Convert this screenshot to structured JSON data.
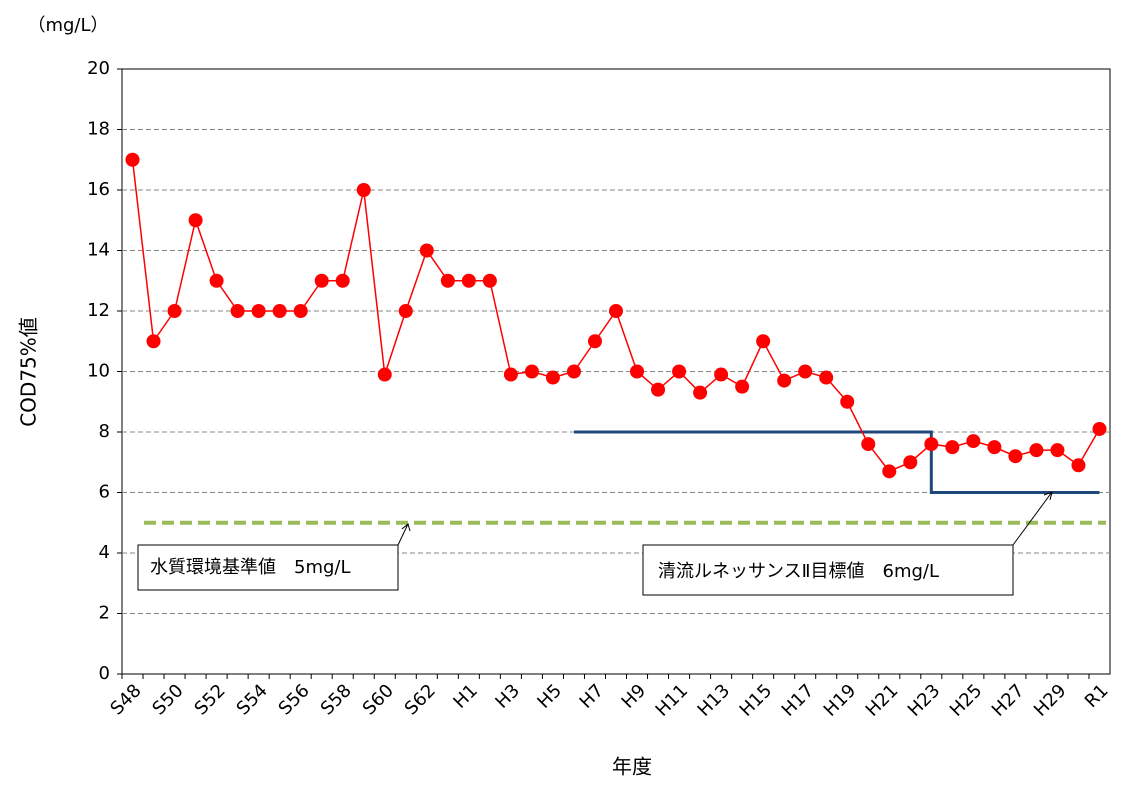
{
  "chart_data": {
    "type": "line",
    "unit_label": "（mg/L）",
    "y_label": "COD75%値",
    "x_label": "年度",
    "categories": [
      "S48",
      null,
      "S50",
      null,
      "S52",
      null,
      "S54",
      null,
      "S56",
      null,
      "S58",
      null,
      "S60",
      null,
      "S62",
      null,
      "H1",
      null,
      "H3",
      null,
      "H5",
      null,
      "H7",
      null,
      "H9",
      null,
      "H11",
      null,
      "H13",
      null,
      "H15",
      null,
      "H17",
      null,
      "H19",
      null,
      "H21",
      null,
      "H23",
      null,
      "H25",
      null,
      "H27",
      null,
      "H29",
      null,
      "R1"
    ],
    "series": [
      {
        "color": "#ff0000",
        "values": [
          17,
          11,
          12,
          15,
          13,
          12,
          12,
          12,
          12,
          13,
          13,
          16,
          9.9,
          12,
          14,
          13,
          13,
          13,
          9.9,
          10,
          9.8,
          10,
          11,
          12,
          10,
          9.4,
          10,
          9.3,
          9.9,
          9.5,
          11,
          9.7,
          10,
          9.8,
          9.0,
          7.6,
          6.7,
          7.0,
          7.6,
          7.5,
          7.7,
          7.5,
          7.2,
          7.4,
          7.4,
          6.9,
          8.1
        ]
      }
    ],
    "target": {
      "label": "清流ルネッサンスⅡ目標値　6mg/L",
      "color": "#1f497d",
      "values": [
        null,
        null,
        null,
        null,
        null,
        null,
        null,
        null,
        null,
        null,
        null,
        null,
        null,
        null,
        null,
        null,
        null,
        null,
        null,
        null,
        null,
        8,
        8,
        8,
        8,
        8,
        8,
        8,
        8,
        8,
        8,
        8,
        8,
        8,
        8,
        8,
        8,
        8,
        6,
        6,
        6,
        6,
        6,
        6,
        6,
        6,
        6
      ]
    },
    "standard": {
      "label": "水質環境基準値　5mg/L",
      "value": 5,
      "color": "#9bbb59"
    },
    "ylim": [
      0,
      20
    ],
    "yticks": [
      0,
      2,
      4,
      6,
      8,
      10,
      12,
      14,
      16,
      18,
      20
    ],
    "grid": true
  }
}
